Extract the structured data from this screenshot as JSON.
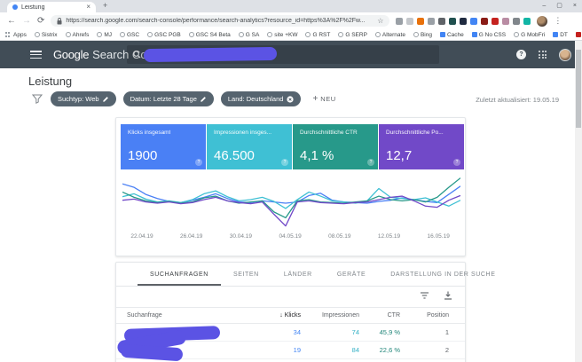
{
  "glyphs": {
    "close": "×",
    "plus": "+",
    "back": "←",
    "forward": "→",
    "reload": "⟳",
    "star": "☆",
    "more": "⋮",
    "minimize": "–",
    "maximize": "▢",
    "overflow": "»",
    "sort_desc": "↓",
    "help": "?"
  },
  "browser": {
    "tab_title": "Leistung",
    "window_controls": [
      "–",
      "▢",
      "×"
    ],
    "url": "https://search.google.com/search-console/performance/search-analytics?resource_id=https%3A%2F%2Fw...",
    "bookmarks": [
      {
        "label": "Apps",
        "fav": "apps"
      },
      {
        "label": "Sistrix",
        "fav": "globe"
      },
      {
        "label": "Ahrefs",
        "fav": "globe"
      },
      {
        "label": "MJ",
        "fav": "globe"
      },
      {
        "label": "GSC",
        "fav": "globe"
      },
      {
        "label": "GSC PGB",
        "fav": "globe"
      },
      {
        "label": "GSC S4 Beta",
        "fav": "globe"
      },
      {
        "label": "G SA",
        "fav": "globe"
      },
      {
        "label": "site +KW",
        "fav": "globe"
      },
      {
        "label": "G RST",
        "fav": "globe"
      },
      {
        "label": "G SERP",
        "fav": "globe"
      },
      {
        "label": "Alternate",
        "fav": "globe"
      },
      {
        "label": "Bing",
        "fav": "globe"
      },
      {
        "label": "Cache",
        "fav": "#4285f4"
      },
      {
        "label": "G No CSS",
        "fav": "#4285f4"
      },
      {
        "label": "G MobFri",
        "fav": "globe"
      },
      {
        "label": "DT",
        "fav": "#4285f4"
      },
      {
        "label": "AWR",
        "fav": "#c5221f"
      },
      {
        "label": "Exactdomain - FQR...",
        "fav": "globe"
      }
    ],
    "extension_colors": [
      "#9aa0a6",
      "#c4c7cb",
      "#e8710a",
      "#9aa0a6",
      "#5f6368",
      "#20504f",
      "#1f2a40",
      "#4285f4",
      "#8a1c16",
      "#c5221f",
      "#b98ca3",
      "#80868b",
      "#12b5a5"
    ]
  },
  "gsc": {
    "logo_primary": "Google",
    "logo_secondary": "Search Console",
    "page_title": "Leistung",
    "filters": [
      {
        "label": "Suchtyp: Web",
        "icon": "pencil"
      },
      {
        "label": "Datum: Letzte 28 Tage",
        "icon": "pencil"
      },
      {
        "label": "Land: Deutschland",
        "icon": "remove"
      }
    ],
    "new_filter_label": "NEU",
    "last_updated": "Zuletzt aktualisiert: 19.05.19",
    "cards": [
      {
        "label": "Klicks insgesamt",
        "value": "1900",
        "color": "#4a80f5"
      },
      {
        "label": "Impressionen insges...",
        "value": "46.500",
        "color": "#3fc0d4"
      },
      {
        "label": "Durchschnittliche CTR",
        "value": "4,1 %",
        "color": "#27998a"
      },
      {
        "label": "Durchschnittliche Po...",
        "value": "12,7",
        "color": "#7149c8"
      }
    ],
    "tabs": [
      {
        "label": "SUCHANFRAGEN",
        "active": true
      },
      {
        "label": "SEITEN",
        "active": false
      },
      {
        "label": "LÄNDER",
        "active": false
      },
      {
        "label": "GERÄTE",
        "active": false
      },
      {
        "label": "DARSTELLUNG IN DER SUCHE",
        "active": false
      }
    ],
    "table": {
      "query_header": "Suchanfrage",
      "metric_headers": [
        "Klicks",
        "Impressionen",
        "CTR",
        "Position"
      ],
      "sorted_by": "Klicks",
      "rows": [
        {
          "query": "",
          "klicks": "34",
          "impressionen": "74",
          "ctr": "45,9 %",
          "position": "1"
        },
        {
          "query": "",
          "klicks": "19",
          "impressionen": "84",
          "ctr": "22,6 %",
          "position": "2"
        }
      ]
    }
  },
  "chart_data": {
    "type": "line",
    "title": "",
    "xlabel": "",
    "ylabel": "",
    "grid": false,
    "legend": "none",
    "x_labels": [
      "22.04.19",
      "26.04.19",
      "30.04.19",
      "04.05.19",
      "08.05.19",
      "12.05.19",
      "16.05.19"
    ],
    "x_label_positions": [
      1,
      5,
      9,
      13,
      17,
      21,
      25
    ],
    "y_scale_note": "unlabeled axis; values estimated 0-100 relative height",
    "ylim": [
      0,
      100
    ],
    "series": [
      {
        "name": "Klicks",
        "color": "#4a80f5",
        "values": [
          80,
          74,
          62,
          55,
          50,
          48,
          52,
          57,
          63,
          55,
          49,
          48,
          51,
          49,
          47,
          49,
          60,
          64,
          52,
          49,
          48,
          47,
          50,
          52,
          56,
          53,
          50,
          48,
          62,
          76
        ]
      },
      {
        "name": "Impressionen",
        "color": "#3fc0d4",
        "values": [
          58,
          63,
          54,
          49,
          51,
          48,
          53,
          63,
          68,
          58,
          51,
          53,
          57,
          50,
          38,
          53,
          66,
          59,
          51,
          49,
          47,
          51,
          72,
          57,
          55,
          53,
          56,
          49,
          42,
          52
        ]
      },
      {
        "name": "CTR",
        "color": "#27998a",
        "values": [
          66,
          57,
          51,
          48,
          50,
          47,
          49,
          56,
          59,
          51,
          47,
          49,
          51,
          32,
          22,
          51,
          53,
          49,
          48,
          47,
          49,
          51,
          59,
          53,
          51,
          53,
          49,
          57,
          74,
          90
        ]
      },
      {
        "name": "Position",
        "color": "#7149c8",
        "values": [
          52,
          54,
          49,
          47,
          49,
          46,
          48,
          53,
          57,
          51,
          48,
          46,
          49,
          28,
          8,
          49,
          51,
          48,
          47,
          46,
          48,
          49,
          53,
          57,
          59,
          51,
          42,
          40,
          52,
          60
        ]
      }
    ]
  }
}
